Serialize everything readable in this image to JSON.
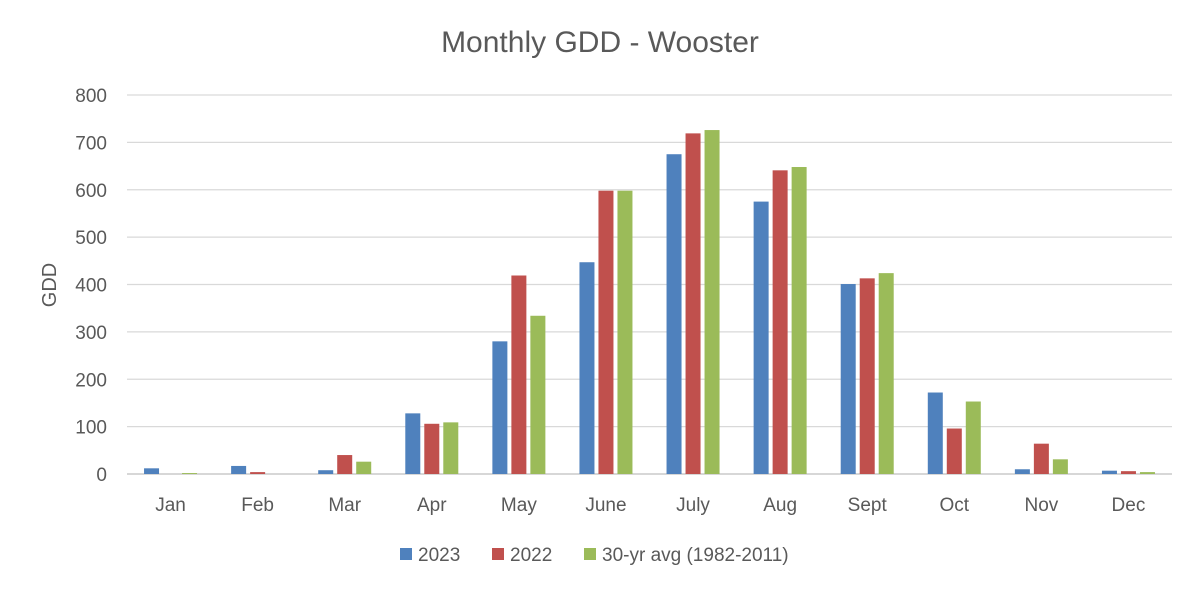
{
  "chart_data": {
    "type": "bar",
    "title": "Monthly GDD - Wooster",
    "xlabel": "",
    "ylabel": "GDD",
    "ylim": [
      0,
      800
    ],
    "yticks": [
      0,
      100,
      200,
      300,
      400,
      500,
      600,
      700,
      800
    ],
    "grid": true,
    "legend_position": "bottom",
    "categories": [
      "Jan",
      "Feb",
      "Mar",
      "Apr",
      "May",
      "June",
      "July",
      "Aug",
      "Sept",
      "Oct",
      "Nov",
      "Dec"
    ],
    "series": [
      {
        "name": "2023",
        "color": "#4F81BD",
        "values": [
          12,
          17,
          8,
          128,
          280,
          447,
          675,
          575,
          401,
          172,
          10,
          7
        ]
      },
      {
        "name": "2022",
        "color": "#C0504D",
        "values": [
          0,
          4,
          40,
          106,
          419,
          598,
          719,
          641,
          413,
          96,
          64,
          6
        ]
      },
      {
        "name": "30-yr avg (1982-2011)",
        "color": "#9BBB59",
        "values": [
          2,
          0,
          26,
          109,
          334,
          598,
          726,
          648,
          424,
          153,
          31,
          4
        ]
      }
    ]
  }
}
